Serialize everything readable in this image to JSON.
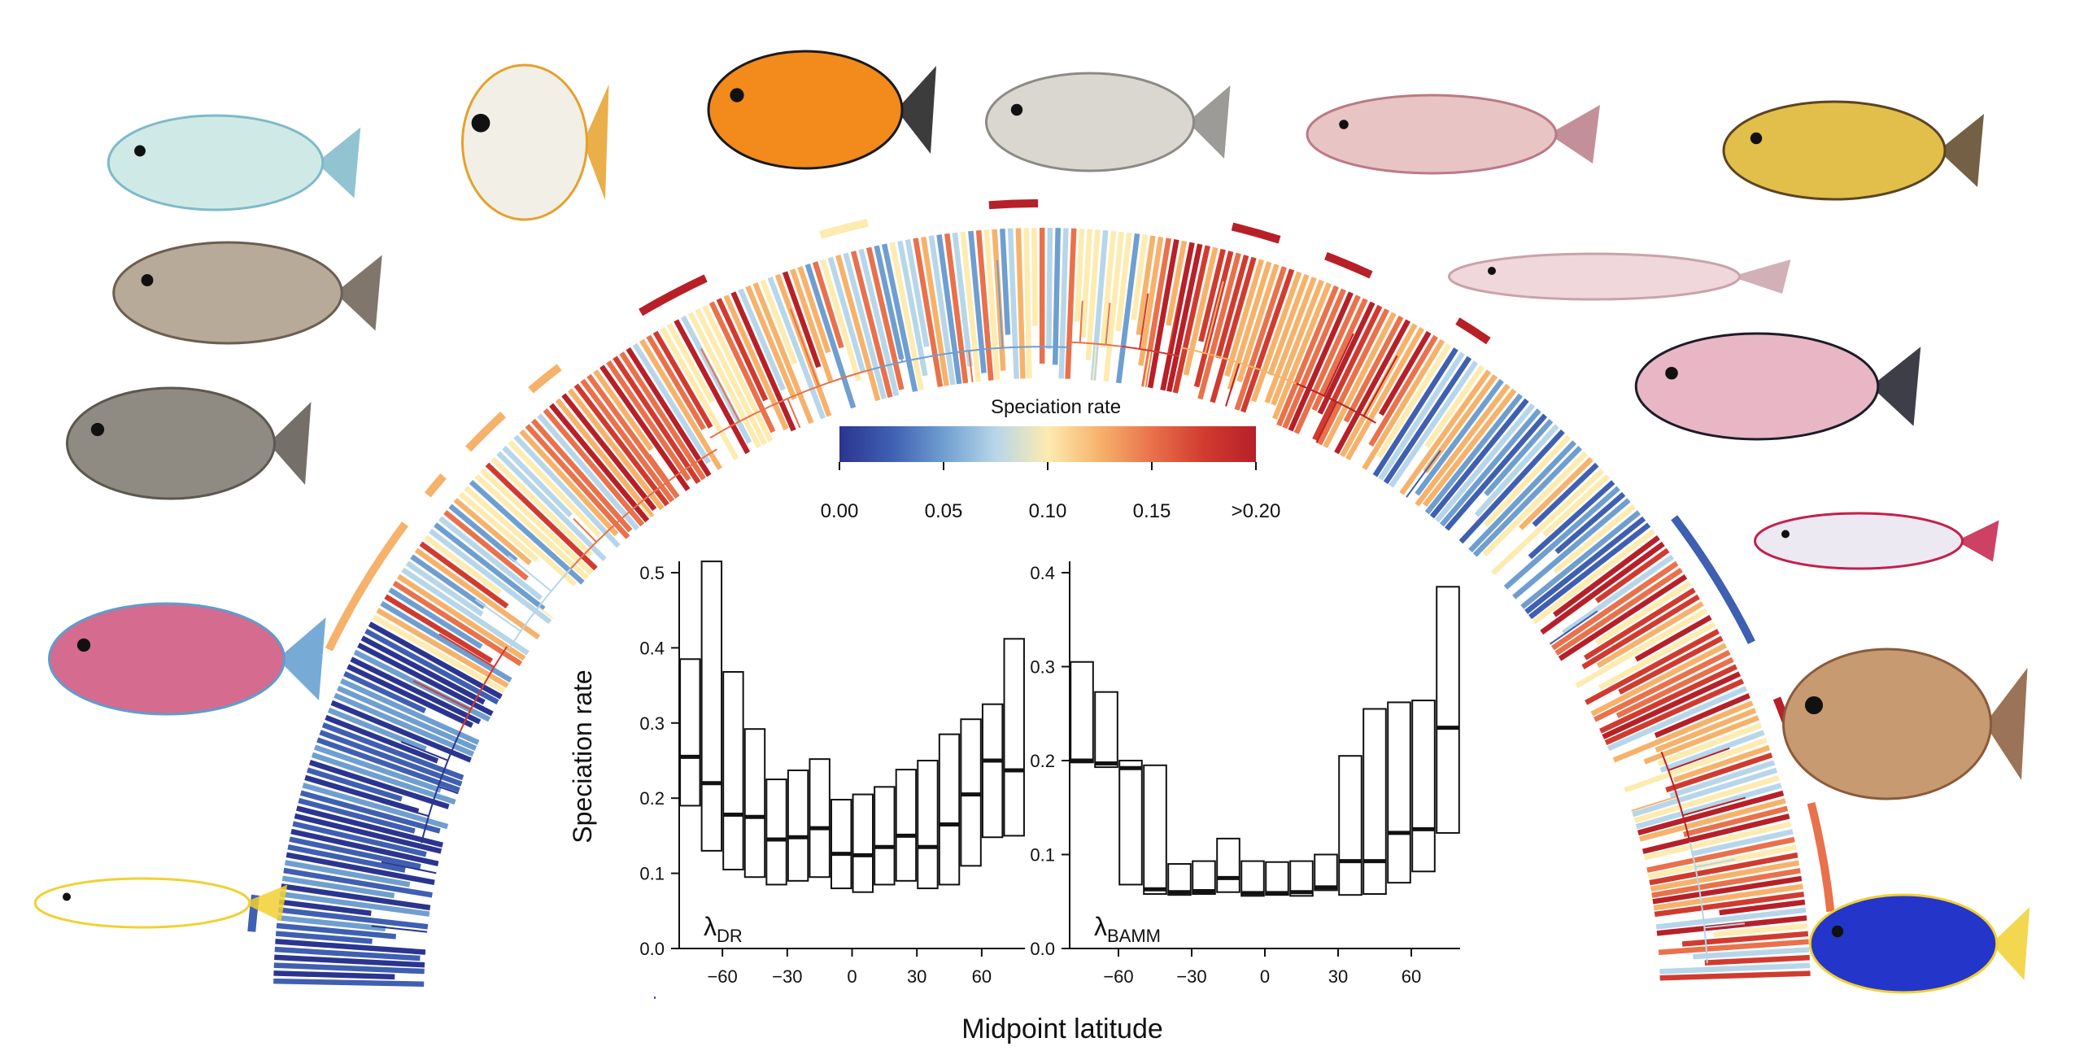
{
  "legend": {
    "title": "Speciation rate",
    "ticks": [
      "0.00",
      "0.05",
      "0.10",
      "0.15",
      ">0.20"
    ],
    "tick_values": [
      0.0,
      0.05,
      0.1,
      0.15,
      0.2
    ],
    "range": [
      0.0,
      0.2
    ],
    "colors": [
      "#2b3590",
      "#3f5fb2",
      "#6f9ed0",
      "#b7d6e9",
      "#fdebb0",
      "#f6b26b",
      "#e9714b",
      "#d13b2f",
      "#b72028"
    ]
  },
  "figure": {
    "xlabel": "Midpoint latitude",
    "background_elements": [
      "phylogeny-fan",
      "fish-illustrations"
    ]
  },
  "chart_data": [
    {
      "type": "box",
      "label_main": "λ",
      "label_sub": "DR",
      "xlabel": "Midpoint latitude",
      "ylabel": "Speciation rate",
      "xlim": [
        -80,
        80
      ],
      "xticks": [
        -60,
        -30,
        0,
        30,
        60
      ],
      "ylim": [
        0,
        0.5
      ],
      "yticks": [
        "0.0",
        "0.1",
        "0.2",
        "0.3",
        "0.4",
        "0.5"
      ],
      "ytick_values": [
        0.0,
        0.1,
        0.2,
        0.3,
        0.4,
        0.5
      ],
      "boxes": [
        {
          "x": -75,
          "low": 0.19,
          "median": 0.255,
          "high": 0.385
        },
        {
          "x": -65,
          "low": 0.13,
          "median": 0.22,
          "high": 0.515
        },
        {
          "x": -55,
          "low": 0.105,
          "median": 0.178,
          "high": 0.368
        },
        {
          "x": -45,
          "low": 0.095,
          "median": 0.175,
          "high": 0.292
        },
        {
          "x": -35,
          "low": 0.085,
          "median": 0.145,
          "high": 0.225
        },
        {
          "x": -25,
          "low": 0.09,
          "median": 0.148,
          "high": 0.237
        },
        {
          "x": -15,
          "low": 0.095,
          "median": 0.16,
          "high": 0.252
        },
        {
          "x": -5,
          "low": 0.08,
          "median": 0.126,
          "high": 0.198
        },
        {
          "x": 5,
          "low": 0.075,
          "median": 0.124,
          "high": 0.205
        },
        {
          "x": 15,
          "low": 0.085,
          "median": 0.135,
          "high": 0.215
        },
        {
          "x": 25,
          "low": 0.09,
          "median": 0.15,
          "high": 0.238
        },
        {
          "x": 35,
          "low": 0.08,
          "median": 0.135,
          "high": 0.25
        },
        {
          "x": 45,
          "low": 0.085,
          "median": 0.165,
          "high": 0.285
        },
        {
          "x": 55,
          "low": 0.11,
          "median": 0.205,
          "high": 0.305
        },
        {
          "x": 65,
          "low": 0.148,
          "median": 0.25,
          "high": 0.325
        },
        {
          "x": 75,
          "low": 0.15,
          "median": 0.237,
          "high": 0.412
        }
      ]
    },
    {
      "type": "box",
      "label_main": "λ",
      "label_sub": "BAMM",
      "xlabel": "Midpoint latitude",
      "ylabel": "",
      "xlim": [
        -80,
        80
      ],
      "xticks": [
        -60,
        -30,
        0,
        30,
        60
      ],
      "ylim": [
        0,
        0.4
      ],
      "yticks": [
        "0.0",
        "0.1",
        "0.2",
        "0.3",
        "0.4"
      ],
      "ytick_values": [
        0.0,
        0.1,
        0.2,
        0.3,
        0.4
      ],
      "boxes": [
        {
          "x": -75,
          "low": 0.198,
          "median": 0.2,
          "high": 0.305
        },
        {
          "x": -65,
          "low": 0.193,
          "median": 0.197,
          "high": 0.273
        },
        {
          "x": -55,
          "low": 0.068,
          "median": 0.192,
          "high": 0.2
        },
        {
          "x": -45,
          "low": 0.058,
          "median": 0.063,
          "high": 0.195
        },
        {
          "x": -35,
          "low": 0.057,
          "median": 0.06,
          "high": 0.09
        },
        {
          "x": -25,
          "low": 0.058,
          "median": 0.061,
          "high": 0.093
        },
        {
          "x": -15,
          "low": 0.06,
          "median": 0.075,
          "high": 0.117
        },
        {
          "x": -5,
          "low": 0.056,
          "median": 0.059,
          "high": 0.093
        },
        {
          "x": 5,
          "low": 0.057,
          "median": 0.059,
          "high": 0.092
        },
        {
          "x": 15,
          "low": 0.056,
          "median": 0.06,
          "high": 0.093
        },
        {
          "x": 25,
          "low": 0.062,
          "median": 0.065,
          "high": 0.1
        },
        {
          "x": 35,
          "low": 0.057,
          "median": 0.093,
          "high": 0.205
        },
        {
          "x": 45,
          "low": 0.058,
          "median": 0.093,
          "high": 0.255
        },
        {
          "x": 55,
          "low": 0.07,
          "median": 0.123,
          "high": 0.262
        },
        {
          "x": 65,
          "low": 0.082,
          "median": 0.127,
          "high": 0.264
        },
        {
          "x": 75,
          "low": 0.123,
          "median": 0.235,
          "high": 0.385
        }
      ]
    }
  ]
}
